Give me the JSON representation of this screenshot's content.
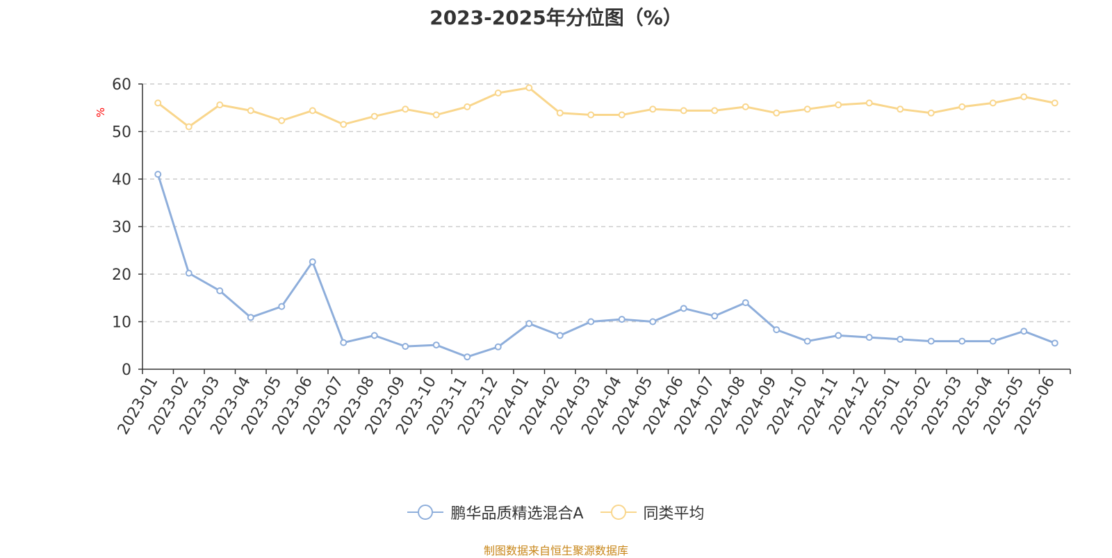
{
  "chart_data": {
    "type": "line",
    "title": "2023-2025年分位图（%）",
    "ylabel": "%",
    "ylim": [
      0,
      60
    ],
    "yticks": [
      0,
      10,
      20,
      30,
      40,
      50,
      60
    ],
    "grid": true,
    "legend_position": "bottom-center",
    "categories": [
      "2023-01",
      "2023-02",
      "2023-03",
      "2023-04",
      "2023-05",
      "2023-06",
      "2023-07",
      "2023-08",
      "2023-09",
      "2023-10",
      "2023-11",
      "2023-12",
      "2024-01",
      "2024-02",
      "2024-03",
      "2024-04",
      "2024-05",
      "2024-06",
      "2024-07",
      "2024-08",
      "2024-09",
      "2024-10",
      "2024-11",
      "2024-12",
      "2025-01",
      "2025-02",
      "2025-03",
      "2025-04",
      "2025-05",
      "2025-06"
    ],
    "series": [
      {
        "name": "鹏华品质精选混合A",
        "color": "#8eaedb",
        "values": [
          41.0,
          20.2,
          16.5,
          10.9,
          13.2,
          22.6,
          5.6,
          7.1,
          4.8,
          5.1,
          2.6,
          4.7,
          9.6,
          7.1,
          10.0,
          10.5,
          10.0,
          12.8,
          11.2,
          14.0,
          8.3,
          5.9,
          7.1,
          6.7,
          6.3,
          5.9,
          5.9,
          5.9,
          8.0,
          5.5
        ]
      },
      {
        "name": "同类平均",
        "color": "#f9d68c",
        "values": [
          56.0,
          51.0,
          55.6,
          54.4,
          52.3,
          54.4,
          51.5,
          53.2,
          54.7,
          53.5,
          55.2,
          58.1,
          59.2,
          53.9,
          53.5,
          53.5,
          54.7,
          54.4,
          54.4,
          55.2,
          53.9,
          54.7,
          55.6,
          56.0,
          54.7,
          53.9,
          55.2,
          56.0,
          57.3,
          56.0
        ]
      }
    ]
  },
  "source_note": "制图数据来自恒生聚源数据库"
}
